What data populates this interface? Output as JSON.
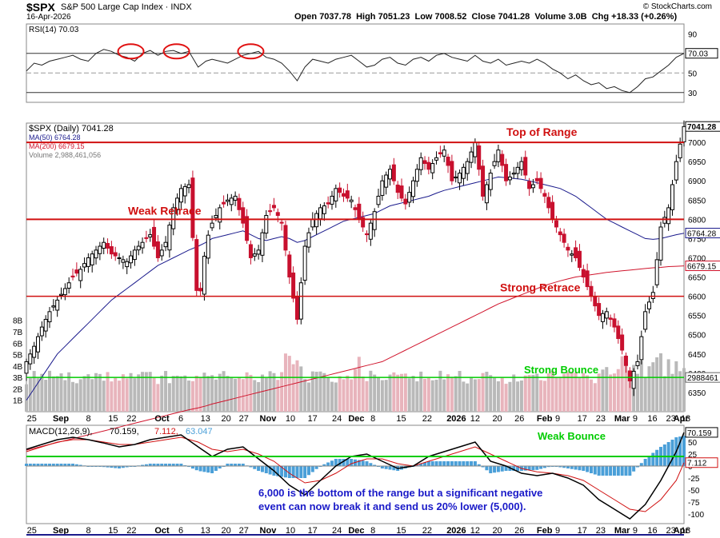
{
  "header": {
    "symbol": "$SPX",
    "name": "S&P 500 Large Cap Index",
    "exchange": "INDX",
    "date": "16-Apr-2026",
    "open_label": "Open",
    "open": "7037.78",
    "high_label": "High",
    "high": "7051.23",
    "low_label": "Low",
    "low": "7008.52",
    "close_label": "Close",
    "close": "7041.28",
    "volume_label": "Volume",
    "volume": "3.0B",
    "chg_label": "Chg",
    "chg": "+18.33 (+0.26%)",
    "copyright": "© StockCharts.com"
  },
  "colors": {
    "up": "#000000",
    "down": "#c8102e",
    "ma50": "#1a1a8c",
    "ma200": "#d0142c",
    "hline": "#d01010",
    "greenline": "#00cc00",
    "macd": "#000000",
    "signal": "#d01010",
    "hist": "#4a9fd8",
    "annot_blue": "#1a1ac8"
  },
  "chart_data": [
    {
      "type": "line",
      "title": "RSI(14) 70.03",
      "indicator": "RSI(14)",
      "last_value": 70.03,
      "ylim": [
        20,
        100
      ],
      "y_ticks": [
        30,
        50,
        70,
        90
      ],
      "reference_lines": [
        30,
        50,
        70
      ],
      "x_index": [
        0,
        10,
        20,
        30,
        40,
        50,
        60,
        70,
        80,
        90,
        100,
        110,
        120,
        130,
        140,
        150,
        160,
        170,
        180,
        190,
        200,
        210,
        222,
        232,
        240,
        250,
        260,
        270,
        280,
        290,
        300,
        310,
        320,
        330,
        340,
        350,
        360,
        370,
        380,
        390,
        400,
        410,
        420,
        430,
        440,
        450,
        460,
        470,
        480,
        490,
        500,
        510,
        520,
        530,
        540,
        550,
        560,
        570,
        580,
        590,
        600,
        610,
        620,
        630,
        640,
        650,
        660,
        670,
        680,
        690,
        700,
        710,
        720,
        730,
        740,
        750,
        760,
        770,
        780,
        790,
        800,
        810,
        820,
        830,
        840,
        850
      ],
      "values": [
        52,
        60,
        58,
        62,
        64,
        66,
        68,
        64,
        62,
        70,
        74,
        72,
        68,
        66,
        62,
        70,
        73,
        68,
        72,
        73,
        70,
        72,
        56,
        62,
        64,
        62,
        60,
        64,
        68,
        70,
        72,
        66,
        64,
        60,
        52,
        42,
        56,
        64,
        62,
        60,
        64,
        66,
        68,
        62,
        56,
        58,
        64,
        66,
        60,
        58,
        64,
        66,
        62,
        68,
        70,
        66,
        64,
        62,
        68,
        62,
        60,
        64,
        58,
        60,
        62,
        60,
        64,
        60,
        54,
        50,
        44,
        48,
        42,
        38,
        40,
        34,
        36,
        32,
        30,
        36,
        44,
        46,
        52,
        58,
        66,
        70
      ],
      "annotation_circles": 4
    },
    {
      "type": "candlestick",
      "title": "$SPX (Daily) 7041.28",
      "legend": [
        {
          "name": "$SPX (Daily) 7041.28",
          "color": "#000000"
        },
        {
          "name": "MA(50) 6764.28",
          "color": "#1a1a8c"
        },
        {
          "name": "MA(200) 6679.15",
          "color": "#d0142c"
        },
        {
          "name": "Volume 2,988,461,056",
          "color": "#777777"
        }
      ],
      "ylim": [
        6300,
        7050
      ],
      "y_ticks": [
        6350,
        6400,
        6450,
        6500,
        6550,
        6600,
        6650,
        6700,
        6750,
        6800,
        6850,
        6900,
        6950,
        7000
      ],
      "last_labels": [
        "7041.28",
        "6764.28",
        "6679.15",
        "2988461"
      ],
      "volume_ticks": [
        "1B",
        "2B",
        "3B",
        "4B",
        "5B",
        "6B",
        "7B",
        "8B"
      ],
      "x_tick_labels": [
        "25",
        "Sep",
        "8",
        "15",
        "22",
        "Oct",
        "6",
        "13",
        "20",
        "27",
        "Nov",
        "10",
        "17",
        "24",
        "Dec",
        "8",
        "15",
        "22",
        "2026",
        "12",
        "20",
        "26",
        "Feb",
        "9",
        "17",
        "23",
        "Mar",
        "9",
        "16",
        "23",
        "Apr",
        "13"
      ],
      "close_index": [
        0,
        10,
        20,
        30,
        40,
        50,
        60,
        70,
        80,
        90,
        100,
        110,
        120,
        130,
        140,
        150,
        160,
        170,
        180,
        190,
        200,
        210,
        222,
        232,
        240,
        250,
        260,
        270,
        280,
        290,
        300,
        310,
        320,
        330,
        340,
        350,
        360,
        370,
        380,
        390,
        400,
        410,
        420,
        430,
        440,
        450,
        460,
        470,
        480,
        490,
        500,
        510,
        520,
        530,
        540,
        550,
        560,
        570,
        580,
        590,
        600,
        610,
        620,
        630,
        640,
        650,
        660,
        670,
        680,
        690,
        700,
        710,
        720,
        730,
        740,
        750,
        760,
        770,
        780,
        790,
        800,
        810,
        820,
        830,
        840,
        850
      ],
      "close": [
        6430,
        6470,
        6520,
        6560,
        6590,
        6620,
        6650,
        6670,
        6700,
        6720,
        6740,
        6710,
        6700,
        6690,
        6720,
        6740,
        6760,
        6700,
        6740,
        6830,
        6880,
        6890,
        6560,
        6740,
        6790,
        6830,
        6850,
        6860,
        6790,
        6700,
        6720,
        6810,
        6830,
        6790,
        6650,
        6540,
        6730,
        6800,
        6830,
        6840,
        6880,
        6860,
        6850,
        6800,
        6760,
        6820,
        6900,
        6930,
        6870,
        6840,
        6900,
        6960,
        6930,
        6960,
        6980,
        6900,
        6920,
        6950,
        7000,
        6860,
        6920,
        6980,
        6900,
        6920,
        6950,
        6880,
        6900,
        6860,
        6800,
        6760,
        6720,
        6700,
        6650,
        6600,
        6550,
        6560,
        6520,
        6460,
        6380,
        6430,
        6560,
        6610,
        6780,
        6830,
        6950,
        7041
      ],
      "ma50": [
        6330,
        6360,
        6390,
        6420,
        6450,
        6470,
        6490,
        6510,
        6530,
        6550,
        6570,
        6590,
        6605,
        6620,
        6635,
        6650,
        6665,
        6680,
        6690,
        6700,
        6710,
        6720,
        6730,
        6740,
        6750,
        6755,
        6760,
        6765,
        6770,
        6760,
        6750,
        6745,
        6750,
        6755,
        6750,
        6740,
        6745,
        6755,
        6765,
        6775,
        6785,
        6795,
        6800,
        6805,
        6810,
        6815,
        6825,
        6835,
        6840,
        6845,
        6850,
        6855,
        6860,
        6868,
        6875,
        6880,
        6885,
        6890,
        6895,
        6900,
        6905,
        6910,
        6908,
        6906,
        6904,
        6900,
        6895,
        6890,
        6885,
        6880,
        6870,
        6860,
        6845,
        6830,
        6815,
        6800,
        6790,
        6780,
        6770,
        6760,
        6750,
        6748,
        6750,
        6755,
        6760,
        6764
      ],
      "ma200": [
        6200,
        6205,
        6210,
        6215,
        6220,
        6225,
        6230,
        6235,
        6240,
        6245,
        6250,
        6255,
        6260,
        6265,
        6270,
        6275,
        6280,
        6285,
        6290,
        6295,
        6300,
        6305,
        6310,
        6315,
        6320,
        6325,
        6330,
        6335,
        6340,
        6345,
        6350,
        6355,
        6360,
        6365,
        6370,
        6375,
        6380,
        6385,
        6390,
        6395,
        6400,
        6405,
        6410,
        6415,
        6420,
        6425,
        6430,
        6440,
        6450,
        6460,
        6470,
        6480,
        6490,
        6500,
        6510,
        6520,
        6530,
        6540,
        6550,
        6560,
        6570,
        6580,
        6588,
        6596,
        6604,
        6612,
        6620,
        6628,
        6634,
        6640,
        6645,
        6650,
        6653,
        6656,
        6659,
        6662,
        6664,
        6666,
        6668,
        6670,
        6672,
        6674,
        6675,
        6677,
        6678,
        6679
      ],
      "horizontal_lines": [
        {
          "label": "Top of Range",
          "value": 7000
        },
        {
          "label": "Weak Retrace",
          "value": 6800
        },
        {
          "label": "Strong Retrace",
          "value": 6600
        }
      ],
      "volume_line": {
        "label": "Strong Bounce",
        "value_b": 3.0
      }
    },
    {
      "type": "line",
      "title": "MACD(12,26,9) 70.159, 7.112, 63.047",
      "legend": [
        {
          "name": "MACD(12,26,9)",
          "color": "#000000"
        },
        {
          "name": "70.159",
          "color": "#000000"
        },
        {
          "name": "7.112",
          "color": "#d01010"
        },
        {
          "name": "63.047",
          "color": "#4a9fd8"
        }
      ],
      "ylim": [
        -120,
        85
      ],
      "y_ticks": [
        -100,
        -75,
        -50,
        -25,
        0,
        25,
        50
      ],
      "last_labels": [
        "70.159",
        "7.112"
      ],
      "horizontal_lines": [
        {
          "label": "Weak Bounce",
          "value": 20
        }
      ],
      "x_index": [
        0,
        20,
        40,
        60,
        80,
        100,
        120,
        140,
        160,
        180,
        200,
        222,
        240,
        260,
        280,
        300,
        320,
        340,
        360,
        380,
        400,
        420,
        440,
        460,
        480,
        500,
        520,
        540,
        560,
        580,
        600,
        620,
        640,
        660,
        680,
        700,
        720,
        740,
        760,
        780,
        800,
        820,
        840,
        850
      ],
      "macd": [
        35,
        45,
        55,
        60,
        55,
        48,
        40,
        45,
        55,
        60,
        65,
        40,
        20,
        35,
        40,
        15,
        -10,
        -40,
        -60,
        -30,
        0,
        20,
        25,
        10,
        -5,
        0,
        20,
        30,
        40,
        50,
        10,
        0,
        -15,
        -20,
        -15,
        -25,
        -40,
        -70,
        -90,
        -110,
        -80,
        -30,
        30,
        70
      ],
      "signal": [
        30,
        40,
        50,
        55,
        55,
        50,
        45,
        45,
        50,
        55,
        60,
        50,
        35,
        30,
        35,
        25,
        10,
        -15,
        -35,
        -30,
        -15,
        5,
        15,
        15,
        5,
        0,
        10,
        20,
        30,
        40,
        25,
        10,
        -5,
        -12,
        -15,
        -20,
        -30,
        -50,
        -70,
        -90,
        -95,
        -70,
        -30,
        7
      ]
    }
  ],
  "annotations": {
    "top_of_range": "Top of Range",
    "weak_retrace": "Weak Retrace",
    "strong_retrace": "Strong Retrace",
    "strong_bounce": "Strong Bounce",
    "weak_bounce": "Weak Bounce",
    "note_line1": "6,000 is the bottom of the range but a significant negative",
    "note_line2": "event can now break it and send us 20% lower (5,000)."
  }
}
